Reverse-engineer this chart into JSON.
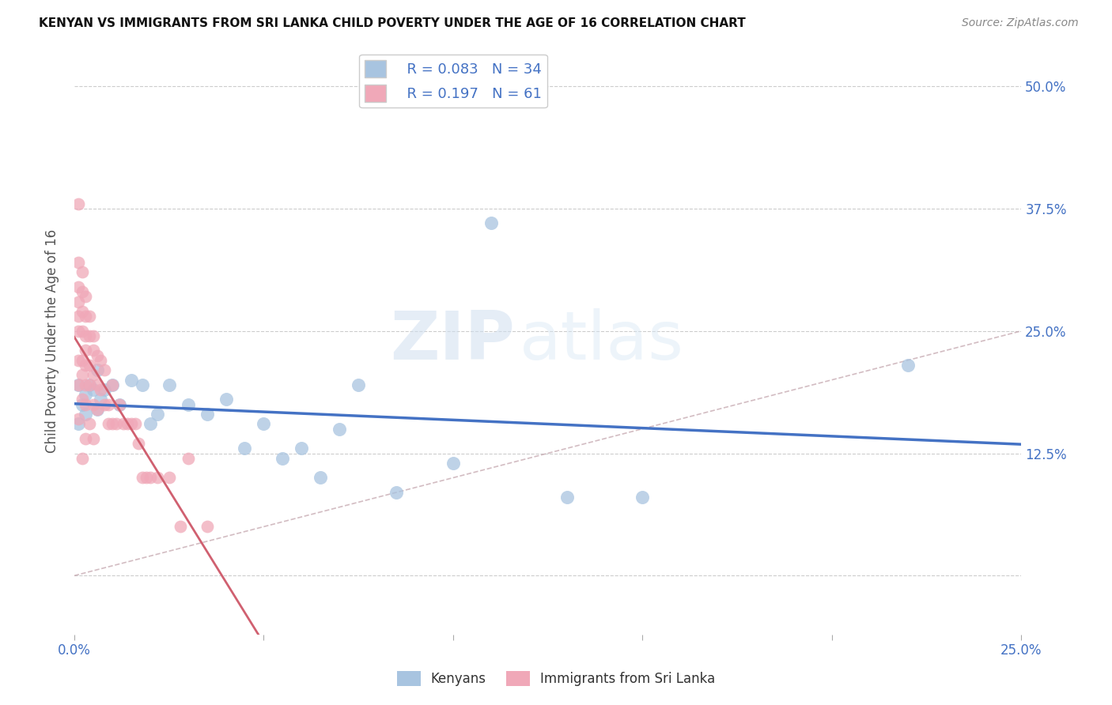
{
  "title": "KENYAN VS IMMIGRANTS FROM SRI LANKA CHILD POVERTY UNDER THE AGE OF 16 CORRELATION CHART",
  "source": "Source: ZipAtlas.com",
  "ylabel": "Child Poverty Under the Age of 16",
  "xlim": [
    0.0,
    0.25
  ],
  "ylim": [
    -0.06,
    0.54
  ],
  "xticks": [
    0.0,
    0.05,
    0.1,
    0.15,
    0.2,
    0.25
  ],
  "xticklabels": [
    "0.0%",
    "",
    "",
    "",
    "",
    "25.0%"
  ],
  "yticks_right": [
    0.0,
    0.125,
    0.25,
    0.375,
    0.5
  ],
  "yticklabels_right": [
    "",
    "12.5%",
    "25.0%",
    "37.5%",
    "50.0%"
  ],
  "watermark_zip": "ZIP",
  "watermark_atlas": "atlas",
  "legend_r1": "R = 0.083",
  "legend_n1": "N = 34",
  "legend_r2": "R = 0.197",
  "legend_n2": "N = 61",
  "legend_label1": "Kenyans",
  "legend_label2": "Immigrants from Sri Lanka",
  "color_blue": "#a8c4e0",
  "color_pink": "#f0a8b8",
  "line_blue": "#4472c4",
  "line_pink": "#d06070",
  "title_color": "#222222",
  "axis_color": "#4472c4",
  "kenyan_x": [
    0.001,
    0.001,
    0.002,
    0.003,
    0.003,
    0.004,
    0.005,
    0.006,
    0.006,
    0.007,
    0.008,
    0.01,
    0.012,
    0.015,
    0.018,
    0.02,
    0.022,
    0.025,
    0.03,
    0.035,
    0.04,
    0.045,
    0.05,
    0.055,
    0.06,
    0.065,
    0.07,
    0.075,
    0.085,
    0.1,
    0.11,
    0.13,
    0.15,
    0.22
  ],
  "kenyan_y": [
    0.195,
    0.155,
    0.175,
    0.185,
    0.165,
    0.195,
    0.19,
    0.17,
    0.21,
    0.18,
    0.19,
    0.195,
    0.175,
    0.2,
    0.195,
    0.155,
    0.165,
    0.195,
    0.175,
    0.165,
    0.18,
    0.13,
    0.155,
    0.12,
    0.13,
    0.1,
    0.15,
    0.195,
    0.085,
    0.115,
    0.36,
    0.08,
    0.08,
    0.215
  ],
  "srilanka_x": [
    0.001,
    0.001,
    0.001,
    0.001,
    0.001,
    0.001,
    0.001,
    0.001,
    0.001,
    0.002,
    0.002,
    0.002,
    0.002,
    0.002,
    0.002,
    0.002,
    0.002,
    0.003,
    0.003,
    0.003,
    0.003,
    0.003,
    0.003,
    0.003,
    0.003,
    0.004,
    0.004,
    0.004,
    0.004,
    0.004,
    0.005,
    0.005,
    0.005,
    0.005,
    0.005,
    0.006,
    0.006,
    0.006,
    0.007,
    0.007,
    0.008,
    0.008,
    0.009,
    0.009,
    0.01,
    0.01,
    0.011,
    0.012,
    0.013,
    0.014,
    0.015,
    0.016,
    0.017,
    0.018,
    0.019,
    0.02,
    0.022,
    0.025,
    0.028,
    0.03,
    0.035
  ],
  "srilanka_y": [
    0.38,
    0.32,
    0.295,
    0.28,
    0.265,
    0.25,
    0.22,
    0.195,
    0.16,
    0.31,
    0.29,
    0.27,
    0.25,
    0.22,
    0.205,
    0.18,
    0.12,
    0.285,
    0.265,
    0.245,
    0.23,
    0.215,
    0.195,
    0.175,
    0.14,
    0.265,
    0.245,
    0.215,
    0.195,
    0.155,
    0.245,
    0.23,
    0.205,
    0.175,
    0.14,
    0.225,
    0.195,
    0.17,
    0.22,
    0.19,
    0.21,
    0.175,
    0.175,
    0.155,
    0.195,
    0.155,
    0.155,
    0.175,
    0.155,
    0.155,
    0.155,
    0.155,
    0.135,
    0.1,
    0.1,
    0.1,
    0.1,
    0.1,
    0.05,
    0.12,
    0.05
  ]
}
